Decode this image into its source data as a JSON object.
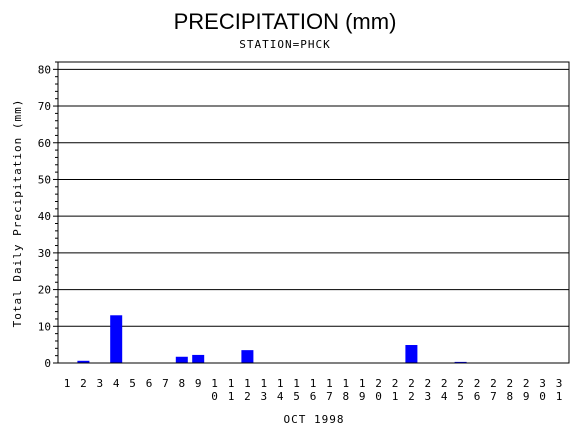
{
  "chart_data": {
    "type": "bar",
    "title": "PRECIPITATION (mm)",
    "subtitle": "STATION=PHCK",
    "xlabel": "OCT 1998",
    "ylabel": "Total Daily Precipitation (mm)",
    "categories": [
      "1",
      "2",
      "3",
      "4",
      "5",
      "6",
      "7",
      "8",
      "9",
      "10",
      "11",
      "12",
      "13",
      "14",
      "15",
      "16",
      "17",
      "18",
      "19",
      "20",
      "21",
      "22",
      "23",
      "24",
      "25",
      "26",
      "27",
      "28",
      "29",
      "30",
      "31"
    ],
    "values": [
      0,
      0.6,
      0,
      13.0,
      0,
      0,
      0,
      1.7,
      2.2,
      0,
      0,
      3.5,
      0,
      0,
      0,
      0,
      0,
      0,
      0,
      0,
      0,
      4.9,
      0,
      0,
      0.3,
      0,
      0,
      0,
      0,
      0,
      0
    ],
    "ylim": [
      0,
      82
    ],
    "yticks": [
      0,
      10,
      20,
      30,
      40,
      50,
      60,
      70,
      80
    ],
    "grid": true,
    "bar_color": "#0000ff"
  }
}
